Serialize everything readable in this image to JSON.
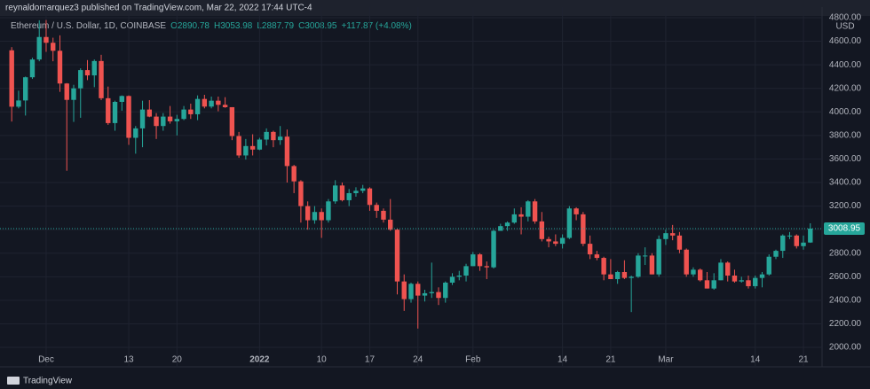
{
  "chart_data": {
    "type": "candlestick",
    "attribution": "reynaldomarquez3 published on TradingView.com, Mar 22, 2022 17:44 UTC-4",
    "legend": {
      "symbol": "Ethereum / U.S. Dollar, 1D, COINBASE",
      "open": "O2890.78",
      "high": "H3053.98",
      "low": "L2887.79",
      "close": "C3008.95",
      "change": "+117.87 (+4.08%)"
    },
    "currency": "USD",
    "brand": "TradingView",
    "price_label": "3008.95",
    "up_color": "#26a69a",
    "down_color": "#ef5350",
    "grid": true,
    "categories": [
      null,
      null,
      null,
      null,
      null,
      "Dec",
      null,
      null,
      null,
      null,
      null,
      null,
      null,
      null,
      null,
      null,
      null,
      "13",
      null,
      null,
      null,
      null,
      null,
      null,
      "20",
      null,
      null,
      null,
      null,
      null,
      null,
      null,
      null,
      null,
      null,
      null,
      "2022",
      null,
      null,
      null,
      null,
      null,
      null,
      null,
      null,
      "10",
      null,
      null,
      null,
      null,
      null,
      null,
      "17",
      null,
      null,
      null,
      null,
      null,
      null,
      "24",
      null,
      null,
      null,
      null,
      null,
      null,
      null,
      "Feb",
      null,
      null,
      null,
      null,
      null,
      null,
      null,
      null,
      null,
      null,
      null,
      null,
      "14",
      null,
      null,
      null,
      null,
      null,
      null,
      "21",
      null,
      null,
      null,
      null,
      null,
      null,
      null,
      "Mar",
      null,
      null,
      null,
      null,
      null,
      null,
      null,
      null,
      null,
      null,
      null,
      null,
      "14",
      null,
      null,
      null,
      null,
      null,
      null,
      "21",
      null
    ],
    "open": [
      4523,
      4044,
      4097,
      4294,
      4445,
      4636,
      4587,
      4519,
      4241,
      4102,
      4200,
      4355,
      4310,
      4432,
      4116,
      3905,
      4085,
      4135,
      3780,
      3860,
      4020,
      3960,
      3880,
      3960,
      3920,
      3940,
      4020,
      3980,
      4110,
      4045,
      4095,
      4060,
      4040,
      3795,
      3630,
      3710,
      3680,
      3765,
      3830,
      3760,
      3790,
      3540,
      3410,
      3200,
      3080,
      3150,
      3080,
      3240,
      3375,
      3250,
      3310,
      3330,
      3350,
      3210,
      3160,
      3085,
      3000,
      2560,
      2410,
      2540,
      2440,
      2460,
      2470,
      2420,
      2550,
      2600,
      2610,
      2690,
      2790,
      2690,
      2680,
      2990,
      3030,
      3060,
      3130,
      3110,
      3240,
      3070,
      2920,
      2900,
      2880,
      2930,
      3180,
      3130,
      2880,
      2790,
      2760,
      2620,
      2580,
      2640,
      2590,
      2600,
      2780,
      2780,
      2620,
      2920,
      2970,
      2950,
      2830,
      2620,
      2660,
      2570,
      2500,
      2570,
      2720,
      2610,
      2560,
      2570,
      2520,
      2590,
      2620,
      2770,
      2820,
      2950,
      2950,
      2860,
      2890.78
    ],
    "high": [
      4550,
      4180,
      4300,
      4460,
      4778,
      4780,
      4630,
      4650,
      4245,
      4230,
      4370,
      4440,
      4445,
      4485,
      4215,
      4095,
      4140,
      4140,
      3880,
      4095,
      4100,
      3990,
      3990,
      4050,
      3975,
      4050,
      4070,
      4140,
      4145,
      4130,
      4130,
      4125,
      4040,
      3830,
      3770,
      3810,
      3780,
      3860,
      3840,
      3880,
      3850,
      3550,
      3420,
      3240,
      3200,
      3180,
      3260,
      3420,
      3400,
      3345,
      3360,
      3380,
      3360,
      3230,
      3180,
      3260,
      3010,
      2620,
      2550,
      2560,
      2490,
      2720,
      2510,
      2560,
      2630,
      2650,
      2710,
      2810,
      2800,
      2730,
      3000,
      3050,
      3070,
      3180,
      3190,
      3250,
      3260,
      3150,
      2940,
      2960,
      2960,
      3200,
      3190,
      3150,
      2950,
      2820,
      2770,
      2750,
      2650,
      2740,
      2610,
      2800,
      2850,
      2800,
      2950,
      3000,
      3040,
      2980,
      2840,
      2680,
      2670,
      2640,
      2630,
      2750,
      2730,
      2660,
      2600,
      2610,
      2610,
      2640,
      2790,
      2830,
      2960,
      2980,
      2960,
      2950,
      3053.98
    ],
    "low": [
      3918,
      4030,
      3969,
      4280,
      4430,
      4510,
      4430,
      4170,
      3500,
      3915,
      3950,
      4270,
      4210,
      4100,
      3890,
      3840,
      4010,
      3720,
      3645,
      3700,
      3955,
      3770,
      3840,
      3900,
      3800,
      3930,
      3940,
      3930,
      4030,
      4030,
      4005,
      4035,
      3760,
      3610,
      3595,
      3630,
      3675,
      3715,
      3700,
      3720,
      3400,
      3310,
      3060,
      3000,
      3050,
      2930,
      3060,
      3220,
      3240,
      3200,
      3280,
      3310,
      3160,
      3100,
      3060,
      2990,
      2450,
      2310,
      2380,
      2160,
      2390,
      2420,
      2360,
      2380,
      2530,
      2570,
      2560,
      2690,
      2650,
      2580,
      2670,
      2990,
      2990,
      3050,
      2960,
      3070,
      3050,
      2900,
      2850,
      2860,
      2840,
      2920,
      3080,
      2860,
      2750,
      2740,
      2570,
      2580,
      2540,
      2580,
      2300,
      2590,
      2700,
      2620,
      2600,
      2870,
      2910,
      2800,
      2600,
      2600,
      2560,
      2500,
      2490,
      2570,
      2560,
      2550,
      2550,
      2500,
      2500,
      2510,
      2610,
      2750,
      2760,
      2920,
      2840,
      2830,
      2887.79
    ],
    "close": [
      4044,
      4097,
      4294,
      4445,
      4636,
      4587,
      4519,
      4241,
      4102,
      4200,
      4355,
      4310,
      4432,
      4116,
      3905,
      4085,
      4135,
      3780,
      3860,
      4020,
      3960,
      3880,
      3960,
      3920,
      3940,
      4020,
      3980,
      4110,
      4045,
      4095,
      4060,
      4040,
      3795,
      3630,
      3710,
      3680,
      3765,
      3830,
      3760,
      3790,
      3540,
      3410,
      3200,
      3080,
      3150,
      3080,
      3240,
      3375,
      3250,
      3310,
      3330,
      3350,
      3210,
      3160,
      3085,
      3000,
      2560,
      2410,
      2540,
      2440,
      2460,
      2470,
      2420,
      2550,
      2600,
      2610,
      2690,
      2790,
      2690,
      2680,
      2990,
      3030,
      3060,
      3130,
      3110,
      3240,
      3070,
      2920,
      2900,
      2880,
      2930,
      3180,
      3130,
      2880,
      2790,
      2760,
      2620,
      2580,
      2640,
      2590,
      2600,
      2780,
      2780,
      2620,
      2920,
      2970,
      2950,
      2830,
      2620,
      2660,
      2570,
      2500,
      2570,
      2720,
      2610,
      2560,
      2570,
      2520,
      2590,
      2620,
      2770,
      2820,
      2950,
      2950,
      2860,
      2890,
      3008.95
    ],
    "ylim": [
      1865,
      4890
    ],
    "yticks": [
      {
        "value": 2000,
        "label": "2000.00"
      },
      {
        "value": 2200,
        "label": "2200.00"
      },
      {
        "value": 2400,
        "label": "2400.00"
      },
      {
        "value": 2600,
        "label": "2600.00"
      },
      {
        "value": 2800,
        "label": "2800.00"
      },
      {
        "value": 3000,
        "label": "3000.00"
      },
      {
        "value": 3200,
        "label": "3200.00"
      },
      {
        "value": 3400,
        "label": "3400.00"
      },
      {
        "value": 3600,
        "label": "3600.00"
      },
      {
        "value": 3800,
        "label": "3800.00"
      },
      {
        "value": 4000,
        "label": "4000.00"
      },
      {
        "value": 4200,
        "label": "4200.00"
      },
      {
        "value": 4400,
        "label": "4400.00"
      },
      {
        "value": 4600,
        "label": "4600.00"
      },
      {
        "value": 4800,
        "label": "4800.00"
      }
    ]
  }
}
